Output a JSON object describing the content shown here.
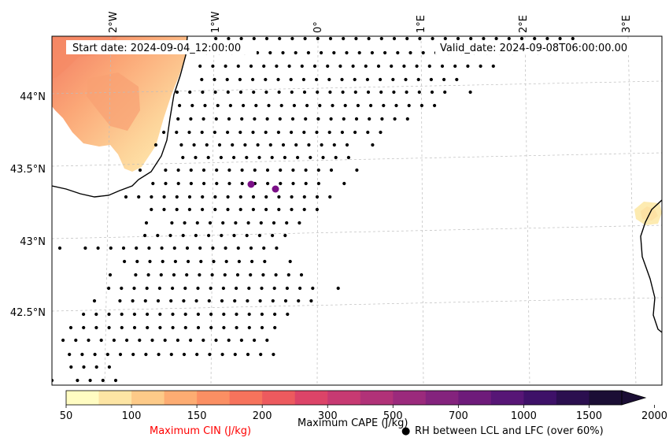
{
  "map": {
    "start_date": "Start date: 2024-09-04_12:00:00",
    "valid_date": "Valid_date: 2024-09-08T06:00:00.00",
    "lon_labels": [
      "2°W",
      "1°W",
      "0°",
      "1°E",
      "2°E",
      "3°E"
    ],
    "lat_labels": [
      "44°N",
      "43.5°N",
      "43°N",
      "42.5°N"
    ],
    "colorbar": {
      "ticks": [
        "50",
        "100",
        "150",
        "200",
        "300",
        "500",
        "700",
        "1000",
        "1500",
        "2000"
      ],
      "colors": [
        "#fffcc2",
        "#fde5a4",
        "#fdca88",
        "#fdac72",
        "#fb8f63",
        "#f7735c",
        "#ed5a5e",
        "#dc4468",
        "#c73a72",
        "#b13278",
        "#9b2a7c",
        "#84237d",
        "#6e1b7a",
        "#571676",
        "#3e1168",
        "#2b0f4f",
        "#1b0e35"
      ],
      "extend": "max"
    },
    "legend": {
      "cin_label": "Maximum CIN (J/kg)",
      "cape_label": "Maximum CAPE (J/kg)",
      "dot_symbol": "●",
      "rh_label": "RH between LCL and LFC (over 60%)"
    },
    "colors": {
      "cin_label": "#ff0000",
      "marker_purple": "#7b0f87",
      "coast": "#000000"
    }
  }
}
